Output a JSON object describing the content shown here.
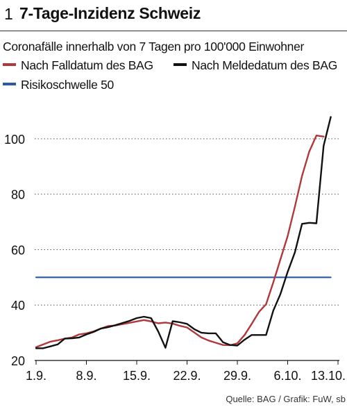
{
  "header": {
    "number": "1",
    "title": "7-Tage-Inzidenz Schweiz"
  },
  "legend": [
    {
      "label": "Nach Falldatum des BAG",
      "color": "#b0373a"
    },
    {
      "label": "Nach Meldedatum des BAG",
      "color": "#111111"
    },
    {
      "label": "Risikoschwelle 50",
      "color": "#2a5aa6"
    }
  ],
  "source": "Quelle: BAG / Grafik: FuW, sb",
  "chart_data": {
    "type": "line",
    "title": "Coronafälle innerhalb von 7 Tagen pro 100'000 Einwohner",
    "xlabel": "",
    "ylabel": "",
    "x_ticks": [
      "1.9.",
      "8.9.",
      "15.9.",
      "22.9.",
      "29.9.",
      "6.10.",
      "13.10."
    ],
    "xlim": [
      0,
      42
    ],
    "ylim": [
      20,
      110
    ],
    "y_ticks": [
      20,
      40,
      60,
      80,
      100
    ],
    "grid": "y-dotted",
    "series": [
      {
        "name": "Nach Falldatum des BAG",
        "color": "#b0373a",
        "points": [
          [
            0,
            24.8
          ],
          [
            1,
            25.8
          ],
          [
            2,
            26.8
          ],
          [
            3,
            27.3
          ],
          [
            4,
            27.9
          ],
          [
            5,
            28.3
          ],
          [
            6,
            29.4
          ],
          [
            7,
            29.8
          ],
          [
            8,
            30.5
          ],
          [
            9,
            31.5
          ],
          [
            10,
            32.4
          ],
          [
            11,
            32.6
          ],
          [
            12,
            33.1
          ],
          [
            13,
            33.6
          ],
          [
            14,
            34.1
          ],
          [
            15,
            34.6
          ],
          [
            16,
            34.1
          ],
          [
            17,
            33.4
          ],
          [
            18,
            33.7
          ],
          [
            19,
            33.3
          ],
          [
            20,
            32.5
          ],
          [
            21,
            31.9
          ],
          [
            22,
            30.1
          ],
          [
            23,
            28.3
          ],
          [
            24,
            27.2
          ],
          [
            25,
            26.4
          ],
          [
            26,
            25.6
          ],
          [
            27,
            25.5
          ],
          [
            28,
            26.2
          ],
          [
            29,
            29.2
          ],
          [
            30,
            33.2
          ],
          [
            31,
            37.5
          ],
          [
            32,
            40.3
          ],
          [
            33,
            48.2
          ],
          [
            34,
            56.5
          ],
          [
            35,
            64.9
          ],
          [
            36,
            75.5
          ],
          [
            37,
            86.6
          ],
          [
            38,
            95.4
          ],
          [
            39,
            101.2
          ],
          [
            40,
            100.8
          ]
        ]
      },
      {
        "name": "Nach Meldedatum des BAG",
        "color": "#111111",
        "points": [
          [
            0,
            24.4
          ],
          [
            1,
            24.4
          ],
          [
            2,
            25.1
          ],
          [
            3,
            25.8
          ],
          [
            4,
            27.9
          ],
          [
            5,
            28.0
          ],
          [
            6,
            28.3
          ],
          [
            7,
            29.4
          ],
          [
            8,
            30.3
          ],
          [
            9,
            31.5
          ],
          [
            10,
            32.0
          ],
          [
            11,
            32.7
          ],
          [
            12,
            33.5
          ],
          [
            13,
            34.3
          ],
          [
            14,
            35.3
          ],
          [
            15,
            35.8
          ],
          [
            16,
            35.3
          ],
          [
            17,
            30.4
          ],
          [
            18,
            24.6
          ],
          [
            19,
            34.2
          ],
          [
            20,
            33.8
          ],
          [
            21,
            33.2
          ],
          [
            22,
            31.3
          ],
          [
            23,
            30.0
          ],
          [
            24,
            29.8
          ],
          [
            25,
            29.8
          ],
          [
            26,
            26.6
          ],
          [
            27,
            25.6
          ],
          [
            28,
            25.4
          ],
          [
            29,
            27.5
          ],
          [
            30,
            29.2
          ],
          [
            31,
            29.2
          ],
          [
            32,
            29.2
          ],
          [
            33,
            38.0
          ],
          [
            34,
            44.0
          ],
          [
            35,
            52.0
          ],
          [
            36,
            59.0
          ],
          [
            37,
            69.3
          ],
          [
            38,
            69.7
          ],
          [
            39,
            69.5
          ],
          [
            40,
            97.5
          ],
          [
            41,
            107.9
          ]
        ]
      },
      {
        "name": "Risikoschwelle 50",
        "color": "#2a5aa6",
        "points": [
          [
            0,
            50
          ],
          [
            41,
            50
          ]
        ]
      }
    ]
  }
}
